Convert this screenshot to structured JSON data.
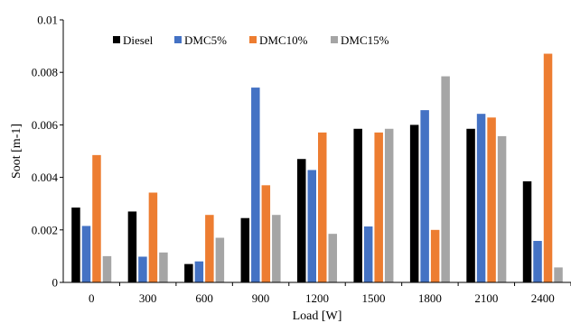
{
  "chart_data": {
    "type": "bar",
    "title": "",
    "xlabel": "Load [W]",
    "ylabel": "Soot [m-1]",
    "categories": [
      "0",
      "300",
      "600",
      "900",
      "1200",
      "1500",
      "1800",
      "2100",
      "2400"
    ],
    "ylim": [
      0,
      0.01
    ],
    "yticks": [
      "0",
      "0.002",
      "0.004",
      "0.006",
      "0.008",
      "0.01"
    ],
    "ytick_values": [
      0,
      0.002,
      0.004,
      0.006,
      0.008,
      0.01
    ],
    "grid": false,
    "legend_position": "top-left",
    "series": [
      {
        "name": "Diesel",
        "color": "#000000",
        "values": [
          0.00285,
          0.0027,
          0.0007,
          0.00245,
          0.0047,
          0.00585,
          0.006,
          0.00585,
          0.00385
        ]
      },
      {
        "name": "DMC5%",
        "color": "#4472C4",
        "values": [
          0.00215,
          0.00098,
          0.0008,
          0.00742,
          0.00428,
          0.00213,
          0.00656,
          0.00642,
          0.00158
        ]
      },
      {
        "name": "DMC10%",
        "color": "#ED7D31",
        "values": [
          0.00485,
          0.00342,
          0.00257,
          0.0037,
          0.00571,
          0.00571,
          0.002,
          0.00628,
          0.00871
        ]
      },
      {
        "name": "DMC15%",
        "color": "#A5A5A5",
        "values": [
          0.001,
          0.00114,
          0.0017,
          0.00257,
          0.00185,
          0.00585,
          0.00785,
          0.00557,
          0.00057
        ]
      }
    ]
  }
}
